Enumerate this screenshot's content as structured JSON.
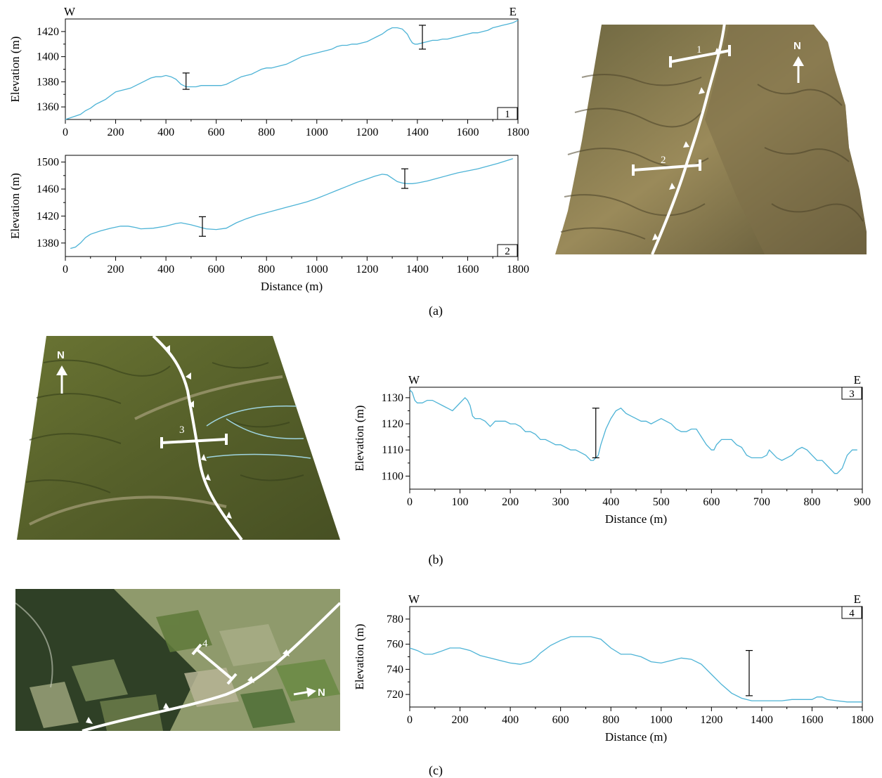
{
  "panel_labels": {
    "a": "(a)",
    "b": "(b)",
    "c": "(c)"
  },
  "maps": [
    {
      "id": "map-a",
      "profile_labels": [
        "1",
        "2"
      ],
      "north_label": "N",
      "colors": {
        "terrain": "#8c7a4c",
        "fault": "#ffffff"
      }
    },
    {
      "id": "map-b",
      "profile_labels": [
        "3"
      ],
      "north_label": "N",
      "colors": {
        "terrain": "#5e6a2c",
        "fault": "#ffffff",
        "river": "#9fd4df"
      }
    },
    {
      "id": "map-c",
      "profile_labels": [
        "4"
      ],
      "north_label": "N",
      "colors": {
        "forest": "#2f4026",
        "fields": "#9aa27a",
        "fault": "#ffffff"
      }
    }
  ],
  "line_color": "#4db3d6",
  "chart_data": [
    {
      "id": "profile-1",
      "type": "line",
      "box_label": "1",
      "direction_left": "W",
      "direction_right": "E",
      "xlabel": "",
      "ylabel": "Elevation (m)",
      "xlim": [
        0,
        1800
      ],
      "ylim": [
        1350,
        1430
      ],
      "xticks": [
        0,
        200,
        400,
        600,
        800,
        1000,
        1200,
        1400,
        1600,
        1800
      ],
      "yticks": [
        1360,
        1380,
        1400,
        1420
      ],
      "series": [
        {
          "x": [
            0,
            30,
            60,
            80,
            100,
            120,
            140,
            160,
            180,
            200,
            220,
            240,
            260,
            280,
            300,
            320,
            340,
            360,
            380,
            400,
            420,
            440,
            460,
            470,
            480,
            500,
            520,
            540,
            560,
            580,
            600,
            620,
            640,
            660,
            680,
            700,
            720,
            740,
            760,
            780,
            800,
            820,
            840,
            860,
            880,
            900,
            920,
            940,
            960,
            980,
            1000,
            1020,
            1040,
            1060,
            1080,
            1100,
            1120,
            1140,
            1160,
            1180,
            1200,
            1220,
            1240,
            1260,
            1280,
            1300,
            1320,
            1340,
            1360,
            1370,
            1380,
            1390,
            1400,
            1420,
            1440,
            1460,
            1480,
            1500,
            1520,
            1540,
            1560,
            1580,
            1600,
            1620,
            1640,
            1660,
            1680,
            1700,
            1720,
            1740,
            1760,
            1780,
            1800
          ],
          "y": [
            1350,
            1352,
            1354,
            1357,
            1359,
            1362,
            1364,
            1366,
            1369,
            1372,
            1373,
            1374,
            1375,
            1377,
            1379,
            1381,
            1383,
            1384,
            1384,
            1385,
            1384,
            1382,
            1378,
            1377,
            1376,
            1376,
            1376,
            1377,
            1377,
            1377,
            1377,
            1377,
            1378,
            1380,
            1382,
            1384,
            1385,
            1386,
            1388,
            1390,
            1391,
            1391,
            1392,
            1393,
            1394,
            1396,
            1398,
            1400,
            1401,
            1402,
            1403,
            1404,
            1405,
            1406,
            1408,
            1409,
            1409,
            1410,
            1410,
            1411,
            1412,
            1414,
            1416,
            1418,
            1421,
            1423,
            1423,
            1422,
            1418,
            1414,
            1411,
            1410,
            1410,
            1411,
            1412,
            1413,
            1413,
            1414,
            1414,
            1415,
            1416,
            1417,
            1418,
            1419,
            1419,
            1420,
            1421,
            1423,
            1424,
            1425,
            1426,
            1427,
            1429
          ]
        }
      ],
      "error_bars": [
        {
          "x": 480,
          "low": 1374,
          "high": 1387
        },
        {
          "x": 1420,
          "low": 1406,
          "high": 1425
        }
      ]
    },
    {
      "id": "profile-2",
      "type": "line",
      "box_label": "2",
      "direction_left": "",
      "direction_right": "",
      "xlabel": "Distance (m)",
      "ylabel": "Elevation (m)",
      "xlim": [
        0,
        1800
      ],
      "ylim": [
        1360,
        1510
      ],
      "xticks": [
        0,
        200,
        400,
        600,
        800,
        1000,
        1200,
        1400,
        1600,
        1800
      ],
      "yticks": [
        1380,
        1420,
        1460,
        1500
      ],
      "series": [
        {
          "x": [
            20,
            40,
            60,
            80,
            100,
            140,
            180,
            220,
            250,
            280,
            300,
            350,
            400,
            440,
            460,
            500,
            540,
            560,
            600,
            640,
            680,
            720,
            760,
            800,
            840,
            880,
            920,
            960,
            1000,
            1040,
            1080,
            1120,
            1160,
            1200,
            1230,
            1260,
            1280,
            1300,
            1320,
            1340,
            1360,
            1380,
            1400,
            1440,
            1480,
            1520,
            1560,
            1600,
            1640,
            1680,
            1720,
            1780
          ],
          "y": [
            1372,
            1374,
            1380,
            1388,
            1393,
            1398,
            1402,
            1405,
            1405,
            1403,
            1401,
            1402,
            1405,
            1409,
            1410,
            1407,
            1403,
            1401,
            1400,
            1402,
            1410,
            1416,
            1421,
            1425,
            1429,
            1433,
            1437,
            1441,
            1446,
            1452,
            1458,
            1464,
            1470,
            1475,
            1479,
            1482,
            1481,
            1476,
            1471,
            1469,
            1468,
            1468,
            1469,
            1472,
            1476,
            1480,
            1484,
            1487,
            1490,
            1494,
            1498,
            1505
          ]
        }
      ],
      "error_bars": [
        {
          "x": 545,
          "low": 1390,
          "high": 1419
        },
        {
          "x": 1350,
          "low": 1461,
          "high": 1490
        }
      ]
    },
    {
      "id": "profile-3",
      "type": "line",
      "box_label": "3",
      "direction_left": "W",
      "direction_right": "E",
      "xlabel": "Distance (m)",
      "ylabel": "Elevation (m)",
      "xlim": [
        0,
        900
      ],
      "ylim": [
        1095,
        1134
      ],
      "xticks": [
        0,
        100,
        200,
        300,
        400,
        500,
        600,
        700,
        800,
        900
      ],
      "yticks": [
        1100,
        1110,
        1120,
        1130
      ],
      "series": [
        {
          "x": [
            0,
            5,
            10,
            15,
            25,
            35,
            45,
            55,
            65,
            75,
            85,
            95,
            105,
            110,
            115,
            120,
            125,
            130,
            140,
            150,
            160,
            165,
            170,
            180,
            190,
            200,
            210,
            220,
            230,
            240,
            250,
            260,
            270,
            280,
            290,
            300,
            310,
            320,
            330,
            340,
            350,
            360,
            365,
            370,
            375,
            380,
            390,
            400,
            410,
            420,
            425,
            430,
            440,
            450,
            460,
            470,
            480,
            490,
            500,
            510,
            520,
            530,
            540,
            550,
            560,
            570,
            580,
            590,
            600,
            605,
            610,
            620,
            630,
            640,
            650,
            660,
            670,
            680,
            690,
            700,
            710,
            715,
            720,
            730,
            740,
            750,
            760,
            770,
            780,
            790,
            800,
            810,
            820,
            830,
            840,
            845,
            850,
            855,
            860,
            870,
            880,
            890
          ],
          "y": [
            1133,
            1132,
            1129,
            1128,
            1128,
            1129,
            1129,
            1128,
            1127,
            1126,
            1125,
            1127,
            1129,
            1130,
            1129,
            1127,
            1123,
            1122,
            1122,
            1121,
            1119,
            1120,
            1121,
            1121,
            1121,
            1120,
            1120,
            1119,
            1117,
            1117,
            1116,
            1114,
            1114,
            1113,
            1112,
            1112,
            1111,
            1110,
            1110,
            1109,
            1108,
            1106,
            1106,
            1107,
            1108,
            1112,
            1118,
            1122,
            1125,
            1126,
            1125,
            1124,
            1123,
            1122,
            1121,
            1121,
            1120,
            1121,
            1122,
            1121,
            1120,
            1118,
            1117,
            1117,
            1118,
            1118,
            1115,
            1112,
            1110,
            1110,
            1112,
            1114,
            1114,
            1114,
            1112,
            1111,
            1108,
            1107,
            1107,
            1107,
            1108,
            1110,
            1109,
            1107,
            1106,
            1107,
            1108,
            1110,
            1111,
            1110,
            1108,
            1106,
            1106,
            1104,
            1102,
            1101,
            1101,
            1102,
            1103,
            1108,
            1110,
            1110
          ]
        }
      ],
      "error_bars": [
        {
          "x": 370,
          "low": 1107,
          "high": 1126
        }
      ]
    },
    {
      "id": "profile-4",
      "type": "line",
      "box_label": "4",
      "direction_left": "W",
      "direction_right": "E",
      "xlabel": "Distance (m)",
      "ylabel": "Elevation (m)",
      "xlim": [
        0,
        1800
      ],
      "ylim": [
        710,
        790
      ],
      "xticks": [
        0,
        200,
        400,
        600,
        800,
        1000,
        1200,
        1400,
        1600,
        1800
      ],
      "yticks": [
        720,
        740,
        760,
        780
      ],
      "series": [
        {
          "x": [
            0,
            30,
            60,
            90,
            120,
            160,
            200,
            240,
            280,
            320,
            360,
            400,
            440,
            460,
            480,
            500,
            520,
            560,
            600,
            640,
            680,
            720,
            760,
            800,
            840,
            880,
            920,
            960,
            1000,
            1040,
            1080,
            1120,
            1160,
            1200,
            1240,
            1280,
            1320,
            1360,
            1400,
            1440,
            1480,
            1520,
            1560,
            1600,
            1620,
            1640,
            1660,
            1700,
            1740,
            1780,
            1800
          ],
          "y": [
            757,
            755,
            752,
            752,
            754,
            757,
            757,
            755,
            751,
            749,
            747,
            745,
            744,
            745,
            746,
            749,
            753,
            759,
            763,
            766,
            766,
            766,
            764,
            757,
            752,
            752,
            750,
            746,
            745,
            747,
            749,
            748,
            744,
            736,
            728,
            721,
            717,
            715,
            715,
            715,
            715,
            716,
            716,
            716,
            718,
            718,
            716,
            715,
            714,
            714,
            714
          ]
        }
      ],
      "error_bars": [
        {
          "x": 1350,
          "low": 719,
          "high": 755
        }
      ]
    }
  ]
}
